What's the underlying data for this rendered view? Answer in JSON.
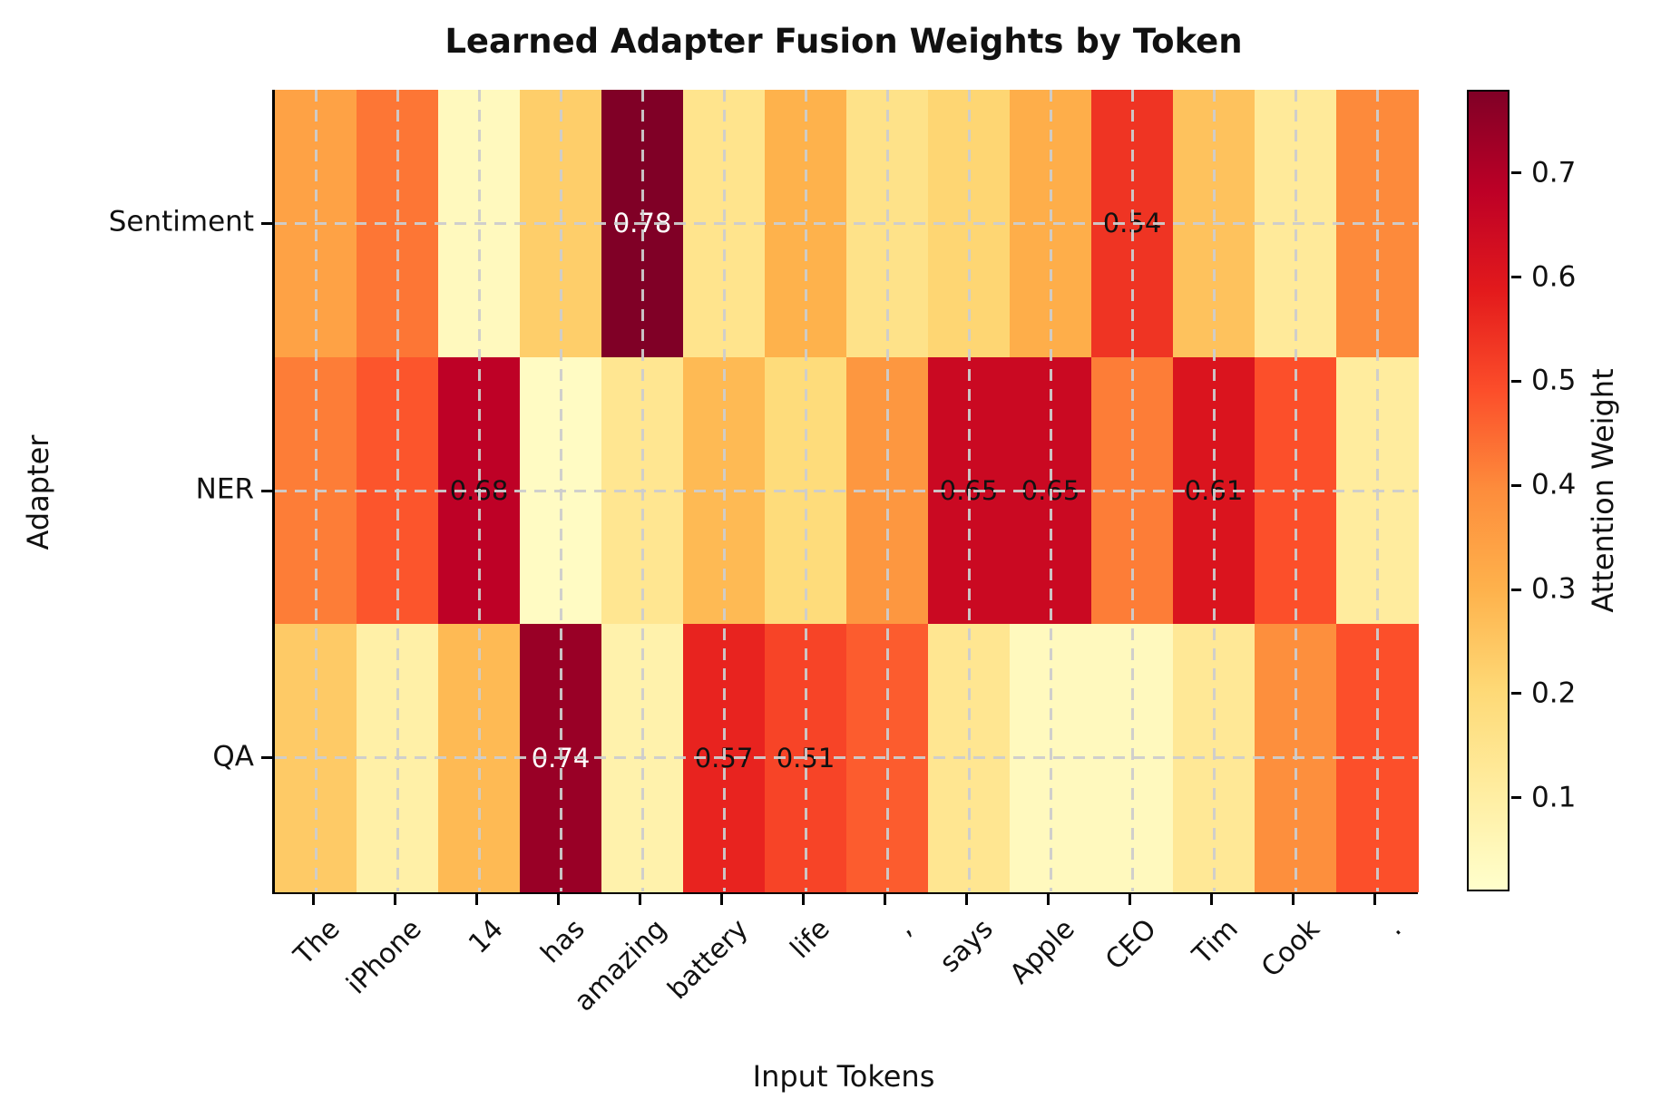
{
  "chart_data": {
    "type": "heatmap",
    "title": "Learned Adapter Fusion Weights by Token",
    "xlabel": "Input Tokens",
    "ylabel": "Adapter",
    "x_tick_labels": [
      "The",
      "iPhone",
      "14",
      "has",
      "amazing",
      "battery",
      "life",
      ",",
      "says",
      "Apple",
      "CEO",
      "Tim",
      "Cook",
      "."
    ],
    "y_tick_labels": [
      "Sentiment",
      "NER",
      "QA"
    ],
    "series": [
      {
        "name": "Sentiment",
        "values": [
          0.34,
          0.43,
          0.04,
          0.23,
          0.78,
          0.15,
          0.3,
          0.16,
          0.21,
          0.31,
          0.54,
          0.26,
          0.12,
          0.4
        ]
      },
      {
        "name": "NER",
        "values": [
          0.42,
          0.48,
          0.68,
          0.03,
          0.14,
          0.28,
          0.19,
          0.37,
          0.65,
          0.65,
          0.42,
          0.61,
          0.49,
          0.11
        ]
      },
      {
        "name": "QA",
        "values": [
          0.24,
          0.09,
          0.28,
          0.74,
          0.08,
          0.57,
          0.51,
          0.47,
          0.14,
          0.04,
          0.04,
          0.13,
          0.39,
          0.49
        ]
      }
    ],
    "visible_cell_labels": [
      "0.78",
      "0.54",
      "0.68",
      "0.65",
      "0.65",
      "0.61",
      "0.74",
      "0.57",
      "0.51"
    ],
    "annotation_threshold": 0.5,
    "white_text_threshold": 0.7,
    "annotation_text_colors": {
      "light": "#ffffff",
      "dark": "#111111"
    },
    "color_scale": {
      "colormap": "YlOrRd",
      "stops": [
        "#ffffcc",
        "#ffeda0",
        "#fed976",
        "#feb24c",
        "#fd8d3c",
        "#fc4e2a",
        "#e31a1c",
        "#bd0026",
        "#800026"
      ],
      "vmin": 0.01,
      "vmax": 0.78
    },
    "colorbar": {
      "label": "Attention Weight",
      "ticks": [
        0.1,
        0.2,
        0.3,
        0.4,
        0.5,
        0.6,
        0.7
      ]
    },
    "grid": true,
    "grid_style": "dashed",
    "grid_color": "#cdcdcd",
    "legend_position": "right-colorbar"
  }
}
